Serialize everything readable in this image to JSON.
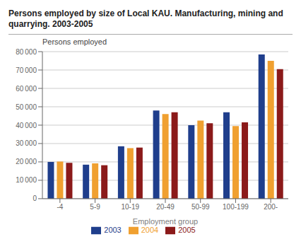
{
  "chart_data": {
    "type": "bar",
    "title": "Persons employed by size of Local KAU. Manufacturing, mining and quarrying. 2003-2005",
    "y_label": "Persons employed",
    "x_label": "Employment group",
    "categories": [
      "-4",
      "5-9",
      "10-19",
      "20-49",
      "50-99",
      "100-199",
      "200-"
    ],
    "series": [
      {
        "name": "2003",
        "color": "#1f3e8c",
        "values": [
          20000,
          18500,
          28500,
          48000,
          40000,
          47000,
          78500
        ]
      },
      {
        "name": "2004",
        "color": "#f0a030",
        "values": [
          20200,
          19200,
          27500,
          46000,
          42500,
          39500,
          75000
        ]
      },
      {
        "name": "2005",
        "color": "#8b1a1a",
        "values": [
          19500,
          18200,
          27800,
          47000,
          41000,
          41500,
          70500
        ]
      }
    ],
    "ylim": [
      0,
      80000
    ],
    "yticks": [
      0,
      {
        "value": 10000,
        "label": "10 000"
      },
      {
        "value": 20000,
        "label": "20 000"
      },
      {
        "value": 30000,
        "label": "30 000"
      },
      {
        "value": 40000,
        "label": "40 000"
      },
      {
        "value": 50000,
        "label": "50 000"
      },
      {
        "value": 60000,
        "label": "60 000"
      },
      {
        "value": 70000,
        "label": "70 000"
      },
      {
        "value": 80000,
        "label": "80 000"
      }
    ],
    "grid": true,
    "legend": "bottom"
  }
}
